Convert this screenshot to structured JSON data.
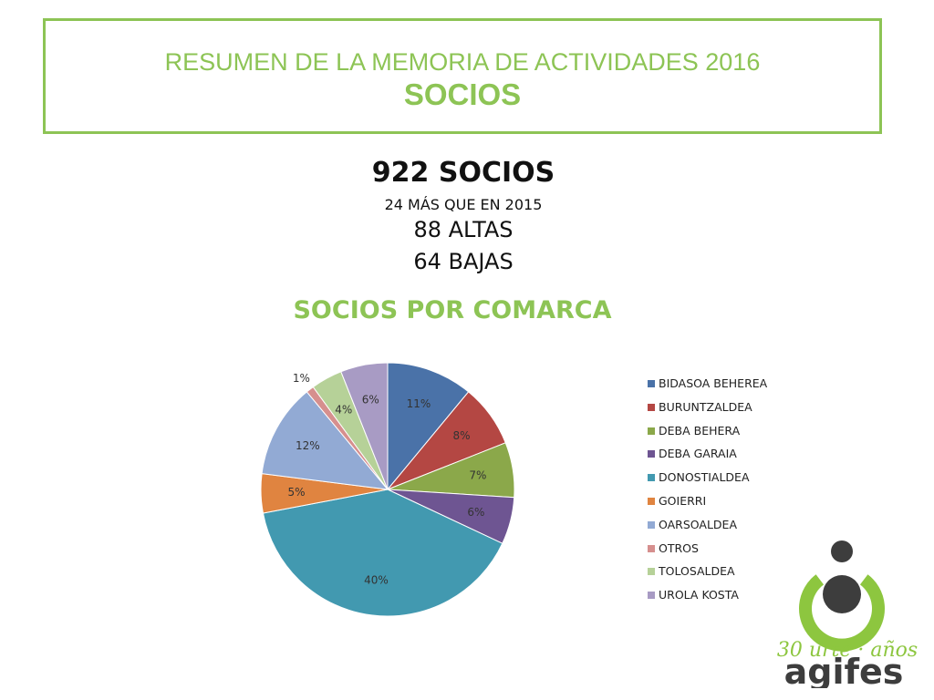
{
  "header": {
    "line1": "RESUMEN DE LA MEMORIA DE ACTIVIDADES 2016",
    "line2": "SOCIOS"
  },
  "stats": {
    "total": "922 SOCIOS",
    "diff": "24 MÁS QUE EN 2015",
    "altas": "88 ALTAS",
    "bajas": "64 BAJAS"
  },
  "chart_data": {
    "type": "pie",
    "title": "SOCIOS POR COMARCA",
    "legend_position": "right",
    "categories": [
      "BIDASOA BEHEREA",
      "BURUNTZALDEA",
      "DEBA BEHERA",
      "DEBA GARAIA",
      "DONOSTIALDEA",
      "GOIERRI",
      "OARSOALDEA",
      "OTROS",
      "TOLOSALDEA",
      "UROLA KOSTA"
    ],
    "values": [
      11,
      8,
      7,
      6,
      40,
      5,
      12,
      1,
      4,
      6
    ],
    "labels": [
      "11%",
      "8%",
      "7%",
      "6%",
      "40%",
      "5%",
      "12%",
      "1%",
      "4%",
      "6%"
    ],
    "colors": [
      "#4a72a8",
      "#b44743",
      "#8ba84a",
      "#6e5592",
      "#4299b0",
      "#e08440",
      "#92aad4",
      "#d68f8e",
      "#b6d198",
      "#a89bc4"
    ]
  },
  "logo": {
    "script_text": "30 urte · años",
    "wordmark": "agifes",
    "colors": {
      "green": "#8dc63f",
      "dark": "#3d3d3d"
    }
  }
}
